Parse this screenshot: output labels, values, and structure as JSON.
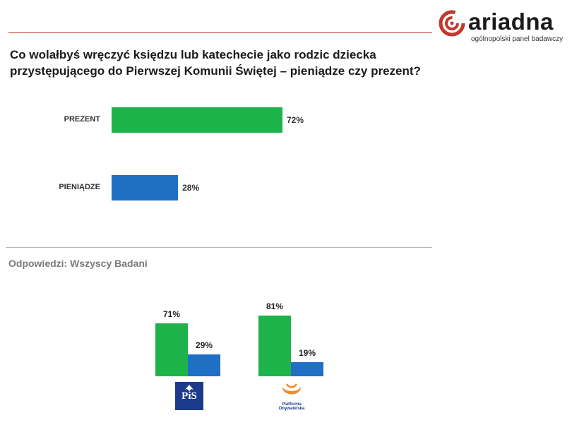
{
  "brand": {
    "name": "ariadna",
    "tagline": "ogólnopolski panel badawczy",
    "color": "#c0392b"
  },
  "question": "Co wolałbyś wręczyć księdzu lub katechecie jako rodzic dziecka przystępującego do Pierwszej Komunii Świętej – pieniądze czy prezent?",
  "responses_note": "Odpowiedzi:  Wszyscy Badani",
  "colors": {
    "prezent": "#1db34a",
    "pieniadze": "#1f6fc4"
  },
  "chart_data": [
    {
      "type": "bar",
      "orientation": "horizontal",
      "categories": [
        "PREZENT",
        "PIENIĄDZE"
      ],
      "values": [
        72,
        28
      ],
      "value_labels": [
        "72%",
        "28%"
      ],
      "xlim": [
        0,
        100
      ]
    },
    {
      "type": "bar",
      "groups": [
        {
          "logo": "PiS",
          "values": [
            71,
            29
          ],
          "value_labels": [
            "71%",
            "29%"
          ]
        },
        {
          "logo": "Platforma Obywatelska",
          "values": [
            81,
            19
          ],
          "value_labels": [
            "81%",
            "19%"
          ]
        }
      ]
    }
  ],
  "po_logo_text": [
    "Platforma",
    "Obywatelska"
  ]
}
